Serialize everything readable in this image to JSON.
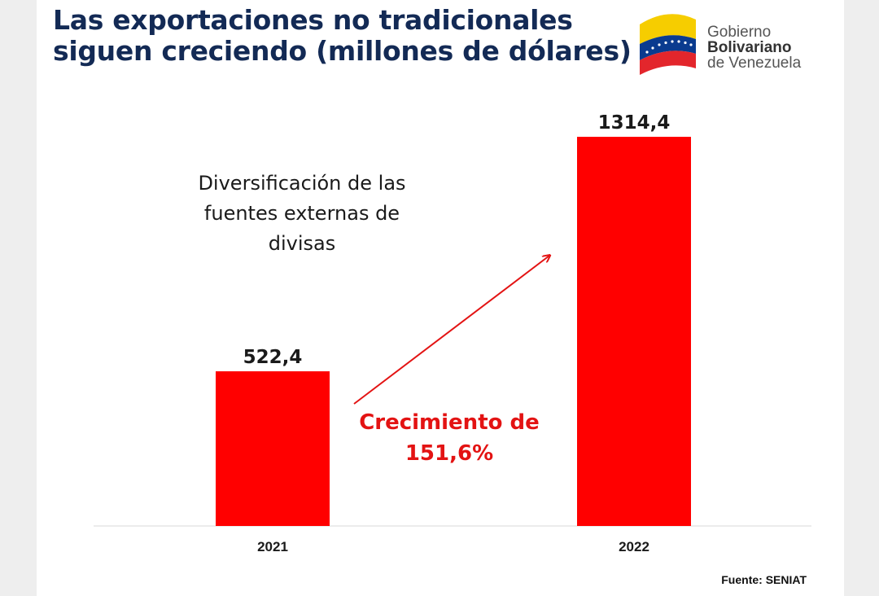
{
  "title": {
    "line1": "Las exportaciones no tradicionales",
    "line2": "siguen creciendo (millones de dólares)"
  },
  "logo": {
    "line1": "Gobierno",
    "line2": "Bolivariano",
    "line3": "de Venezuela"
  },
  "note": {
    "line1": "Diversificación de las",
    "line2": "fuentes externas de",
    "line3": "divisas"
  },
  "growth": {
    "line1": "Crecimiento de",
    "line2": "151,6%"
  },
  "source": "Fuente: SENIAT",
  "colors": {
    "title": "#132a55",
    "bar": "#ff0000",
    "growth_text": "#e31313",
    "arrow": "#e31313",
    "baseline": "#d9d9d9"
  },
  "chart_data": {
    "type": "bar",
    "title": "Las exportaciones no tradicionales siguen creciendo (millones de dólares)",
    "categories": [
      "2021",
      "2022"
    ],
    "values": [
      522.4,
      1314.4
    ],
    "data_labels": [
      "522,4",
      "1314,4"
    ],
    "xlabel": "",
    "ylabel": "",
    "ylim": [
      0,
      1314.4
    ],
    "grid": false,
    "legend": "none"
  }
}
